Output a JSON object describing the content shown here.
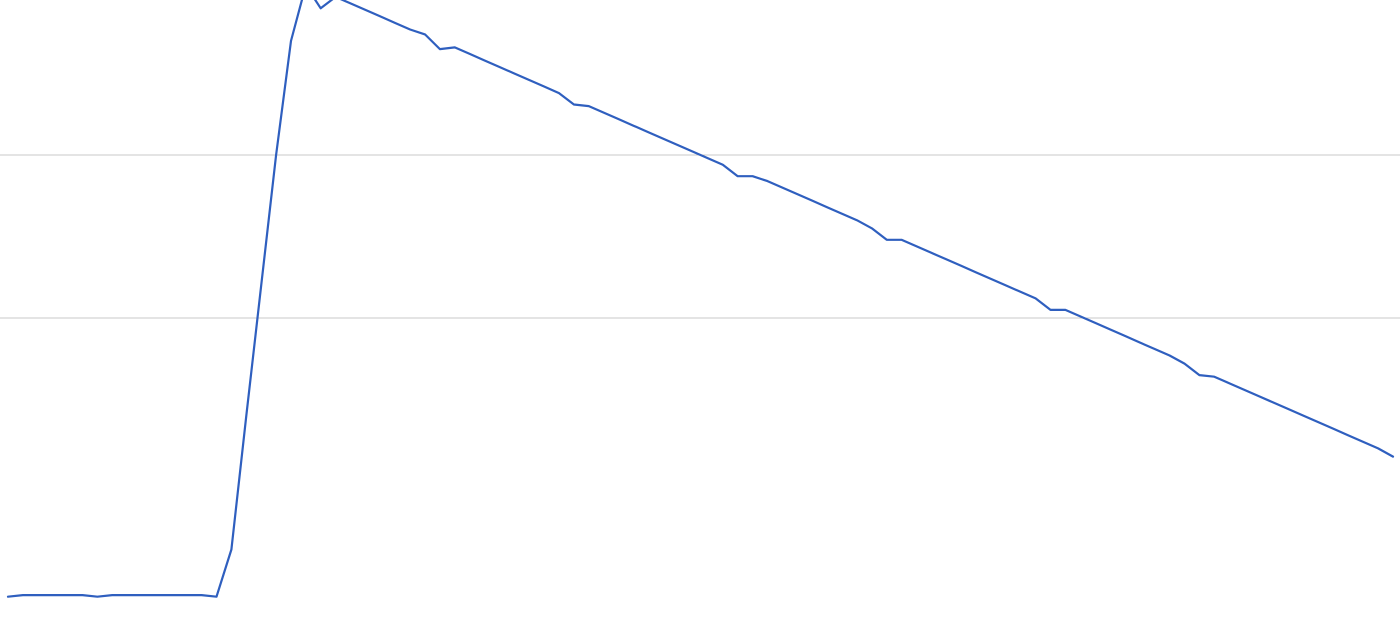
{
  "chart_data": {
    "type": "line",
    "title": "",
    "xlabel": "",
    "ylabel": "",
    "grid": true,
    "legend": "none",
    "ylim": [
      -0.7,
      3.3
    ],
    "yticks": [
      0,
      1,
      2,
      3
    ],
    "line_color": "#2f5fbf",
    "grid_color": "#c8c8c8",
    "x": [
      0,
      1,
      2,
      3,
      4,
      5,
      6,
      7,
      8,
      9,
      10,
      11,
      12,
      13,
      14,
      15,
      16,
      17,
      18,
      19,
      20,
      21,
      22,
      23,
      24,
      25,
      26,
      27,
      28,
      29,
      30,
      31,
      32,
      33,
      34,
      35,
      36,
      37,
      38,
      39,
      40,
      41,
      42,
      43,
      44,
      45,
      46,
      47,
      48,
      49,
      50,
      51,
      52,
      53,
      54,
      55,
      56,
      57,
      58,
      59,
      60,
      61,
      62,
      63,
      64,
      65,
      66,
      67,
      68,
      69,
      70,
      71,
      72,
      73,
      74,
      75,
      76,
      77,
      78,
      79,
      80,
      81,
      82,
      83,
      84,
      85,
      86,
      87,
      88,
      89,
      90,
      91,
      92,
      93
    ],
    "series": [
      {
        "values": [
          -0.71,
          -0.7,
          -0.7,
          -0.7,
          -0.7,
          -0.7,
          -0.71,
          -0.7,
          -0.7,
          -0.7,
          -0.7,
          -0.7,
          -0.7,
          -0.7,
          -0.71,
          -0.42,
          0.4,
          1.2,
          2.0,
          2.7,
          3.04,
          2.9,
          2.97,
          2.93,
          2.89,
          2.85,
          2.81,
          2.77,
          2.74,
          2.65,
          2.66,
          2.62,
          2.58,
          2.54,
          2.5,
          2.46,
          2.42,
          2.38,
          2.31,
          2.3,
          2.26,
          2.22,
          2.18,
          2.14,
          2.1,
          2.06,
          2.02,
          1.98,
          1.94,
          1.87,
          1.87,
          1.84,
          1.8,
          1.76,
          1.72,
          1.68,
          1.64,
          1.6,
          1.55,
          1.48,
          1.48,
          1.44,
          1.4,
          1.36,
          1.32,
          1.28,
          1.24,
          1.2,
          1.16,
          1.12,
          1.05,
          1.05,
          1.01,
          0.97,
          0.93,
          0.89,
          0.85,
          0.81,
          0.77,
          0.72,
          0.65,
          0.64,
          0.6,
          0.56,
          0.52,
          0.48,
          0.44,
          0.4,
          0.36,
          0.32,
          0.28,
          0.24,
          0.2,
          0.15
        ]
      }
    ]
  }
}
